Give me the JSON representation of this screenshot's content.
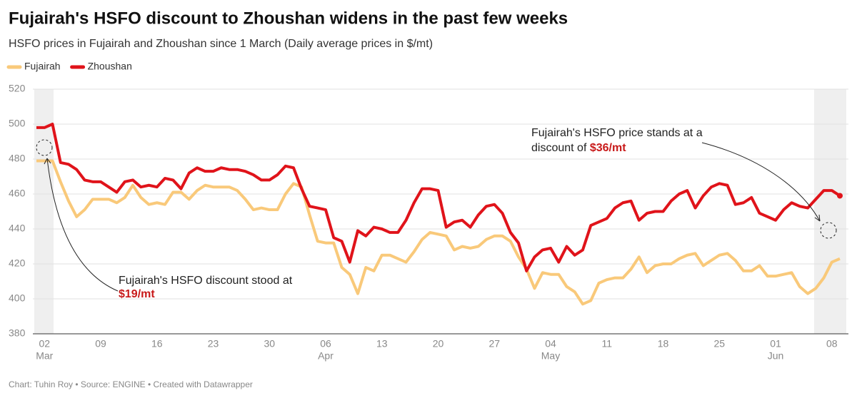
{
  "chart_data": {
    "type": "line",
    "title": "Fujairah's HSFO discount to Zhoushan widens in the past few weeks",
    "subtitle": "HSFO prices in Fujairah and Zhoushan since 1 March (Daily average prices in $/mt)",
    "footer": "Chart: Tuhin Roy • Source: ENGINE • Created with Datawrapper",
    "annotations": [
      {
        "text": "Fujairah's HSFO discount stood at",
        "highlight": "$19/mt"
      },
      {
        "text": "Fujairah's HSFO price stands at a",
        "text2": "discount of",
        "highlight": "$36/mt"
      }
    ],
    "categories": [
      "Mar 01",
      "Mar 02",
      "Mar 03",
      "Mar 04",
      "Mar 05",
      "Mar 06",
      "Mar 07",
      "Mar 08",
      "Mar 09",
      "Mar 10",
      "Mar 11",
      "Mar 12",
      "Mar 13",
      "Mar 14",
      "Mar 15",
      "Mar 16",
      "Mar 17",
      "Mar 18",
      "Mar 19",
      "Mar 20",
      "Mar 21",
      "Mar 22",
      "Mar 23",
      "Mar 24",
      "Mar 25",
      "Mar 26",
      "Mar 27",
      "Mar 28",
      "Mar 29",
      "Mar 30",
      "Mar 31",
      "Apr 01",
      "Apr 02",
      "Apr 03",
      "Apr 04",
      "Apr 05",
      "Apr 06",
      "Apr 07",
      "Apr 08",
      "Apr 09",
      "Apr 10",
      "Apr 11",
      "Apr 12",
      "Apr 13",
      "Apr 14",
      "Apr 15",
      "Apr 16",
      "Apr 17",
      "Apr 18",
      "Apr 19",
      "Apr 20",
      "Apr 21",
      "Apr 22",
      "Apr 23",
      "Apr 24",
      "Apr 25",
      "Apr 26",
      "Apr 27",
      "Apr 28",
      "Apr 29",
      "Apr 30",
      "May 01",
      "May 02",
      "May 03",
      "May 04",
      "May 05",
      "May 06",
      "May 07",
      "May 08",
      "May 09",
      "May 10",
      "May 11",
      "May 12",
      "May 13",
      "May 14",
      "May 15",
      "May 16",
      "May 17",
      "May 18",
      "May 19",
      "May 20",
      "May 21",
      "May 22",
      "May 23",
      "May 24",
      "May 25",
      "May 26",
      "May 27",
      "May 28",
      "May 29",
      "May 30",
      "May 31",
      "Jun 01",
      "Jun 02",
      "Jun 03",
      "Jun 04",
      "Jun 05",
      "Jun 06",
      "Jun 07",
      "Jun 08",
      "Jun 09"
    ],
    "series": [
      {
        "name": "Fujairah",
        "color": "#f9c97a",
        "values": [
          479,
          479,
          479,
          467,
          456,
          447,
          451,
          457,
          457,
          457,
          455,
          458,
          465,
          458,
          454,
          455,
          454,
          461,
          461,
          457,
          462,
          465,
          464,
          464,
          464,
          462,
          457,
          451,
          452,
          451,
          451,
          460,
          466,
          464,
          448,
          433,
          432,
          432,
          418,
          414,
          403,
          418,
          416,
          425,
          425,
          423,
          421,
          427,
          434,
          438,
          437,
          436,
          428,
          430,
          429,
          430,
          434,
          436,
          436,
          433,
          424,
          417,
          406,
          415,
          414,
          414,
          407,
          404,
          397,
          399,
          409,
          411,
          412,
          412,
          417,
          424,
          415,
          419,
          420,
          420,
          423,
          425,
          426,
          419,
          422,
          425,
          426,
          422,
          416,
          416,
          419,
          413,
          413,
          414,
          415,
          407,
          403,
          406,
          412,
          421,
          423
        ]
      },
      {
        "name": "Zhoushan",
        "color": "#e0131a",
        "values": [
          498,
          498,
          500,
          478,
          477,
          474,
          468,
          467,
          467,
          464,
          461,
          467,
          468,
          464,
          465,
          464,
          469,
          468,
          463,
          472,
          475,
          473,
          473,
          475,
          474,
          474,
          473,
          471,
          468,
          468,
          471,
          476,
          475,
          463,
          453,
          452,
          451,
          435,
          433,
          421,
          439,
          436,
          441,
          440,
          438,
          438,
          445,
          455,
          463,
          463,
          462,
          441,
          444,
          445,
          441,
          448,
          453,
          454,
          449,
          438,
          432,
          416,
          424,
          428,
          429,
          421,
          430,
          425,
          428,
          442,
          444,
          446,
          452,
          455,
          456,
          445,
          449,
          450,
          450,
          456,
          460,
          462,
          452,
          459,
          464,
          466,
          465,
          454,
          455,
          458,
          449,
          447,
          445,
          451,
          455,
          453,
          452,
          457,
          462,
          462,
          459
        ]
      }
    ],
    "xticks": [
      {
        "value": "Mar 02",
        "label": "02",
        "month": "Mar"
      },
      {
        "value": "Mar 09",
        "label": "09"
      },
      {
        "value": "Mar 16",
        "label": "16"
      },
      {
        "value": "Mar 23",
        "label": "23"
      },
      {
        "value": "Mar 30",
        "label": "30"
      },
      {
        "value": "Apr 06",
        "label": "06",
        "month": "Apr"
      },
      {
        "value": "Apr 13",
        "label": "13"
      },
      {
        "value": "Apr 20",
        "label": "20"
      },
      {
        "value": "Apr 27",
        "label": "27"
      },
      {
        "value": "May 04",
        "label": "04",
        "month": "May"
      },
      {
        "value": "May 11",
        "label": "11"
      },
      {
        "value": "May 18",
        "label": "18"
      },
      {
        "value": "May 25",
        "label": "25"
      },
      {
        "value": "Jun 01",
        "label": "01",
        "month": "Jun"
      },
      {
        "value": "Jun 08",
        "label": "08"
      }
    ],
    "ylim": [
      380,
      520
    ],
    "yticks": [
      380,
      400,
      420,
      440,
      460,
      480,
      500,
      520
    ],
    "grid": true,
    "legend": "top-left"
  }
}
